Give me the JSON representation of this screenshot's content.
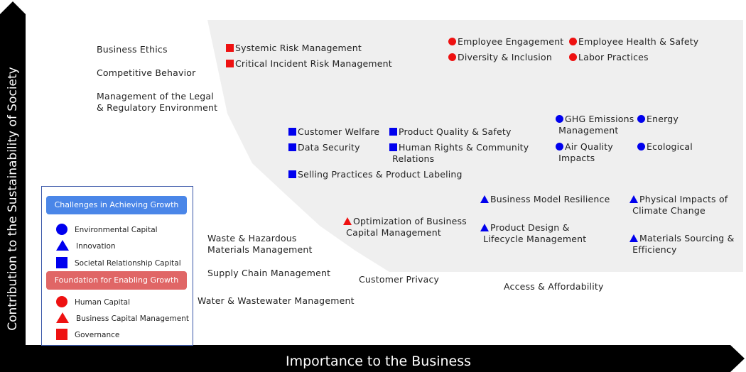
{
  "axes": {
    "y_label": "Contribution to the Sustainability of Society",
    "x_label": "Importance to the Business"
  },
  "colors": {
    "blue": "#0000ee",
    "red": "#ee1111",
    "region": "#efefef",
    "axis": "#000000",
    "legend_blue_header": "#4a86e8",
    "legend_red_header": "#e06666"
  },
  "outside_items": {
    "business_ethics": "Business Ethics",
    "competitive_behavior": "Competitive Behavior",
    "legal_regulatory": "Management of the Legal\n& Regulatory Environment",
    "waste_hazardous": "Waste & Hazardous\nMaterials Management",
    "supply_chain": "Supply Chain Management",
    "water_wastewater": "Water & Wastewater Management",
    "customer_privacy": "Customer Privacy",
    "access_affordability": "Access & Affordability"
  },
  "governance": {
    "systemic_risk": "Systemic Risk Management",
    "critical_incident": "Critical Incident Risk Management"
  },
  "human_capital": {
    "employee_engagement": "Employee Engagement",
    "diversity_inclusion": "Diversity & Inclusion",
    "employee_health_safety": "Employee Health & Safety",
    "labor_practices": "Labor Practices"
  },
  "societal": {
    "customer_welfare": "Customer Welfare",
    "data_security": "Data Security",
    "selling_practices": "Selling Practices & Product Labeling",
    "product_quality": "Product Quality & Safety",
    "human_rights": "Human Rights & Community\n Relations"
  },
  "environmental": {
    "ghg_emissions": "GHG Emissions\n Management",
    "air_quality": "Air Quality\n Impacts",
    "energy": "Energy",
    "ecological": "Ecological"
  },
  "business_capital": {
    "optimization": "Optimization of Business\n Capital Management"
  },
  "innovation": {
    "business_model": "Business Model Resilience",
    "product_design": "Product Design &\n Lifecycle Management",
    "physical_impacts": "Physical Impacts of\n Climate Change",
    "materials_sourcing": "Materials Sourcing &\n Efficiency"
  },
  "legend": {
    "growth_header": "Challenges in Achieving Growth",
    "environmental": "Environmental Capital",
    "innovation": "Innovation",
    "societal": "Societal Relationship Capital",
    "foundation_header": "Foundation for Enabling Growth",
    "human": "Human Capital",
    "business_capital": "Business Capital Management",
    "governance": "Governance"
  }
}
